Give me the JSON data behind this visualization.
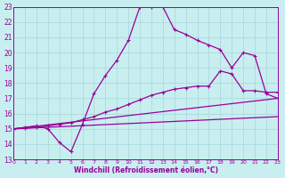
{
  "xlabel": "Windchill (Refroidissement éolien,°C)",
  "bg_color": "#c8eef0",
  "grid_color": "#b0dde0",
  "line_color": "#990099",
  "xmin": 0,
  "xmax": 23,
  "ymin": 13,
  "ymax": 23,
  "line1_x": [
    0,
    1,
    2,
    3,
    4,
    5,
    6,
    7,
    8,
    9,
    10,
    11,
    12,
    13,
    14,
    15,
    16,
    17,
    18,
    19,
    20,
    21,
    22,
    23
  ],
  "line1_y": [
    15,
    15.1,
    15.2,
    15.0,
    14.1,
    13.5,
    15.3,
    17.3,
    18.5,
    19.5,
    20.8,
    23.0,
    23.0,
    23.0,
    21.5,
    21.2,
    20.8,
    20.5,
    20.2,
    19.0,
    20.0,
    19.8,
    17.3,
    17.0
  ],
  "line2_x": [
    0,
    1,
    2,
    3,
    4,
    5,
    6,
    7,
    8,
    9,
    10,
    11,
    12,
    13,
    14,
    15,
    16,
    17,
    18,
    19,
    20,
    21,
    22,
    23
  ],
  "line2_y": [
    15,
    15.05,
    15.1,
    15.2,
    15.3,
    15.4,
    15.6,
    15.8,
    16.1,
    16.3,
    16.6,
    16.9,
    17.2,
    17.4,
    17.6,
    17.7,
    17.8,
    17.8,
    18.8,
    18.6,
    17.5,
    17.5,
    17.4,
    17.4
  ],
  "line3_x": [
    0,
    23
  ],
  "line3_y": [
    15,
    17.0
  ],
  "line4_x": [
    0,
    23
  ],
  "line4_y": [
    15,
    15.8
  ]
}
